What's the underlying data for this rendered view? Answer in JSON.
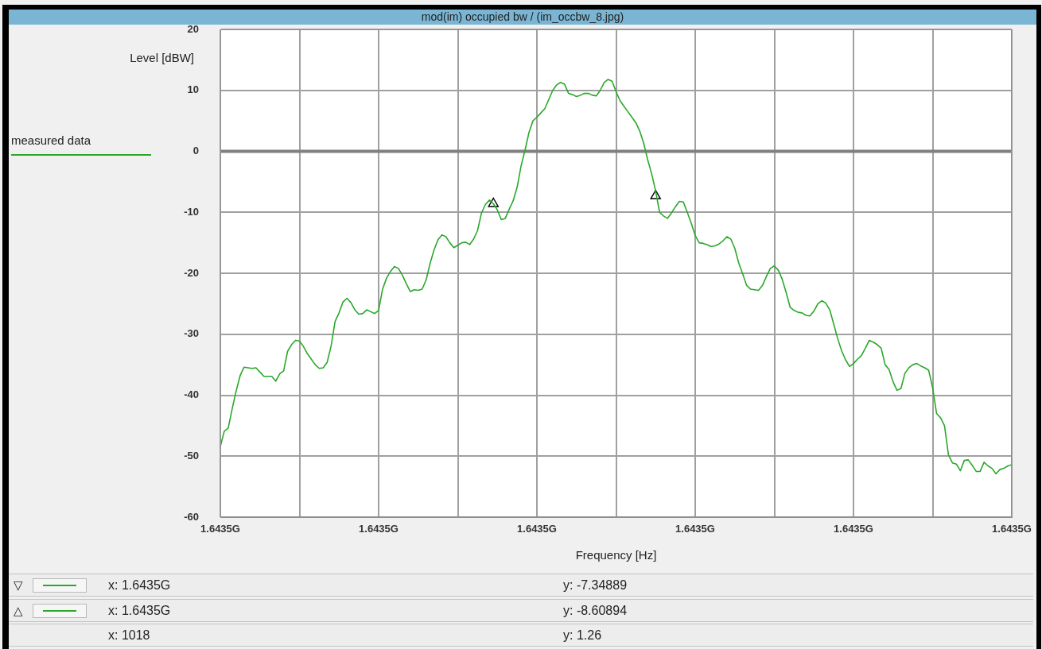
{
  "chart_data": {
    "type": "line",
    "title": "mod(im) occupied bw / (im_occbw_8.jpg)",
    "xlabel": "Frequency [Hz]",
    "ylabel": "Level [dBW]",
    "categories": [
      "1.6435G",
      null,
      null,
      null,
      null,
      null,
      null,
      null,
      null,
      null,
      null,
      null,
      null,
      null,
      null,
      null,
      null,
      null,
      null,
      null,
      null,
      null,
      null,
      null,
      null,
      null,
      null,
      null,
      null,
      null,
      null,
      null,
      null,
      null,
      null,
      null,
      null,
      null,
      null,
      null,
      "1.6435G",
      null,
      null,
      null,
      null,
      null,
      null,
      null,
      null,
      null,
      null,
      null,
      null,
      null,
      null,
      null,
      null,
      null,
      null,
      null,
      null,
      null,
      null,
      null,
      null,
      null,
      null,
      null,
      null,
      null,
      null,
      null,
      null,
      null,
      null,
      null,
      null,
      null,
      null,
      null,
      "1.6435G",
      null,
      null,
      null,
      null,
      null,
      null,
      null,
      null,
      null,
      null,
      null,
      null,
      null,
      null,
      null,
      null,
      null,
      null,
      null,
      null,
      null,
      null,
      null,
      null,
      null,
      null,
      null,
      null,
      null,
      null,
      null,
      null,
      null,
      null,
      null,
      null,
      null,
      null,
      null,
      "1.6435G",
      null,
      null,
      null,
      null,
      null,
      null,
      null,
      null,
      null,
      null,
      null,
      null,
      null,
      null,
      null,
      null,
      null,
      null,
      null,
      null,
      null,
      null,
      null,
      null,
      null,
      null,
      null,
      null,
      null,
      null,
      null,
      null,
      null,
      null,
      null,
      null,
      null,
      null,
      null,
      "1.6435G",
      null,
      null,
      null,
      null,
      null,
      null,
      null,
      null,
      null,
      null,
      null,
      null,
      null,
      null,
      null,
      null,
      null,
      null,
      null,
      null,
      null,
      null,
      null,
      null,
      null,
      null,
      null,
      null,
      null,
      null,
      null,
      null,
      null,
      null,
      null,
      null,
      null,
      null,
      null,
      "1.6435G"
    ],
    "series": [
      {
        "name": "measured data",
        "color": "#2aa82a",
        "values": [
          -48.4,
          -45.9,
          -45.4,
          -42.2,
          -39.3,
          -36.8,
          -35.4,
          -35.5,
          -35.6,
          -35.5,
          -36.2,
          -36.9,
          -36.9,
          -36.9,
          -37.7,
          -36.5,
          -36.0,
          -32.8,
          -31.7,
          -31.0,
          -31.1,
          -32.0,
          -33.2,
          -34.1,
          -35.0,
          -35.6,
          -35.5,
          -34.6,
          -31.9,
          -27.9,
          -26.5,
          -24.7,
          -24.1,
          -24.8,
          -26.0,
          -26.7,
          -26.6,
          -26.0,
          -26.3,
          -26.6,
          -26.1,
          -22.6,
          -20.8,
          -19.7,
          -18.9,
          -19.2,
          -20.3,
          -21.7,
          -23.0,
          -22.7,
          -22.8,
          -22.6,
          -21.1,
          -18.4,
          -16.2,
          -14.5,
          -13.7,
          -14.0,
          -15.0,
          -15.8,
          -15.4,
          -15.0,
          -14.9,
          -15.3,
          -14.4,
          -13.0,
          -10.1,
          -8.7,
          -8.0,
          -8.6,
          -9.6,
          -11.2,
          -11.0,
          -9.5,
          -8.1,
          -5.9,
          -2.4,
          0.2,
          3.1,
          5.0,
          5.6,
          6.3,
          7.0,
          8.5,
          10.0,
          10.9,
          11.3,
          11.0,
          9.5,
          9.3,
          9.0,
          9.2,
          9.5,
          9.5,
          9.2,
          9.1,
          10.0,
          11.3,
          11.8,
          11.5,
          9.8,
          8.3,
          7.4,
          6.5,
          5.6,
          4.7,
          3.3,
          1.3,
          -1.4,
          -3.7,
          -6.5,
          -10.0,
          -10.6,
          -11.0,
          -10.1,
          -9.1,
          -8.2,
          -8.3,
          -10.0,
          -11.8,
          -13.8,
          -15.0,
          -15.1,
          -15.3,
          -15.6,
          -15.5,
          -15.2,
          -14.7,
          -14.0,
          -14.4,
          -15.9,
          -18.3,
          -20.1,
          -22.0,
          -22.6,
          -22.7,
          -22.8,
          -22.0,
          -20.5,
          -19.2,
          -18.8,
          -19.5,
          -21.0,
          -23.2,
          -25.6,
          -26.1,
          -26.4,
          -26.5,
          -26.9,
          -27.0,
          -26.2,
          -25.0,
          -24.5,
          -24.9,
          -26.0,
          -28.3,
          -30.7,
          -32.7,
          -34.2,
          -35.3,
          -34.8,
          -34.1,
          -33.5,
          -32.3,
          -31.0,
          -31.3,
          -31.7,
          -32.3,
          -35.0,
          -35.8,
          -37.8,
          -39.2,
          -38.9,
          -36.4,
          -35.5,
          -35.0,
          -34.8,
          -35.2,
          -35.5,
          -35.9,
          -38.8,
          -43.0,
          -43.7,
          -45.0,
          -49.8,
          -51.1,
          -51.3,
          -52.4,
          -50.7,
          -50.6,
          -51.5,
          -52.5,
          -52.5,
          -51.0,
          -51.6,
          -52.0,
          -52.9,
          -52.2,
          -52.0,
          -51.6,
          -51.4
        ]
      },
      {
        "type": "scatter",
        "color": "#000000",
        "marker": "triangle",
        "values": [
          null,
          null,
          null,
          null,
          null,
          null,
          null,
          null,
          null,
          null,
          null,
          null,
          null,
          null,
          null,
          null,
          null,
          null,
          null,
          null,
          null,
          null,
          null,
          null,
          null,
          null,
          null,
          null,
          null,
          null,
          null,
          null,
          null,
          null,
          null,
          null,
          null,
          null,
          null,
          null,
          null,
          null,
          null,
          null,
          null,
          null,
          null,
          null,
          null,
          null,
          null,
          null,
          null,
          null,
          null,
          null,
          null,
          null,
          null,
          null,
          null,
          null,
          null,
          null,
          null,
          null,
          null,
          null,
          null,
          -8.6,
          null,
          null,
          null,
          null,
          null,
          null,
          null,
          null,
          null,
          null,
          null,
          null,
          null,
          null,
          null,
          null,
          null,
          null,
          null,
          null,
          null,
          null,
          null,
          null,
          null,
          null,
          null,
          null,
          null,
          null,
          null,
          null,
          null,
          null,
          null,
          null,
          null,
          null,
          null,
          null,
          -7.3,
          null,
          null,
          null,
          null,
          null,
          null,
          null,
          null,
          null,
          null,
          null,
          null,
          null,
          null,
          null,
          null,
          null,
          null,
          null,
          null,
          null,
          null,
          null,
          null,
          null,
          null,
          null,
          null,
          null,
          null,
          null,
          null,
          null,
          null,
          null,
          null,
          null,
          null,
          null,
          null,
          null,
          null,
          null,
          null,
          null,
          null,
          null,
          null,
          null,
          null,
          null,
          null,
          null,
          null,
          null,
          null,
          null,
          null,
          null,
          null,
          null,
          null,
          null,
          null,
          null,
          null,
          null,
          null,
          null,
          null,
          null,
          null,
          null,
          null,
          null,
          null,
          null,
          null,
          null,
          null,
          null,
          null,
          null,
          null,
          null,
          null,
          null,
          null,
          null,
          null
        ]
      }
    ],
    "ylim": [
      -60,
      20
    ],
    "yticks": [
      -60,
      -50,
      -40,
      -30,
      -20,
      -10,
      0,
      10,
      20
    ],
    "grid": true,
    "legend": "left",
    "marker": "none",
    "line_style": "solid",
    "ref_lines": [
      {
        "axis": "y",
        "value": 0,
        "color": "#808080"
      }
    ],
    "annotations": [
      "▽",
      "x: 1.6435G",
      "y: -7.34889",
      "△",
      "x: 1.6435G",
      "y: -8.60894",
      "x: 1018",
      "y: 1.26"
    ]
  }
}
